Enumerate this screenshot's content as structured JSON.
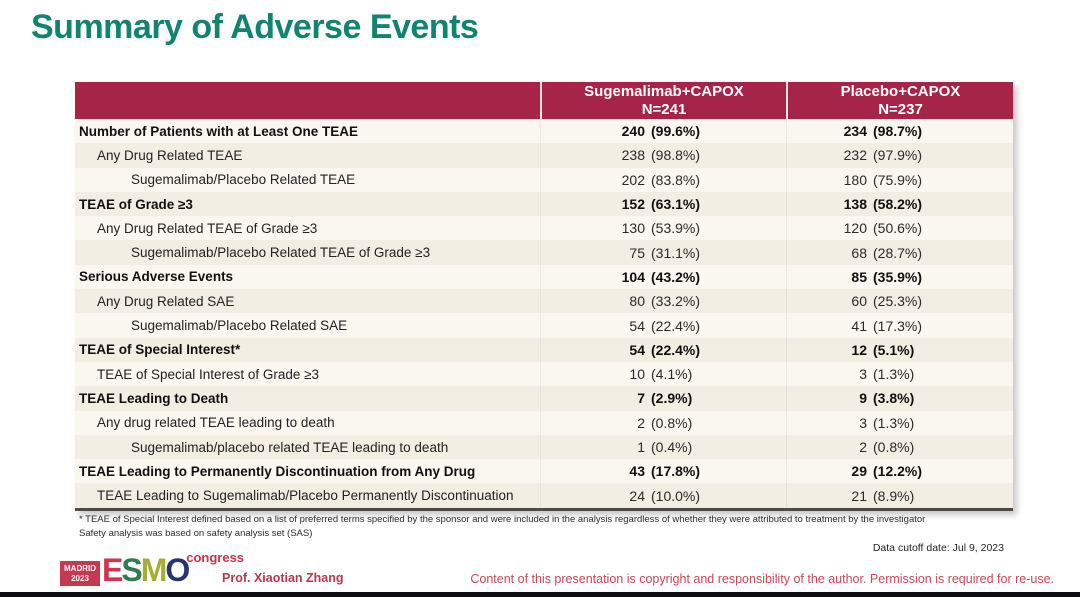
{
  "slide": {
    "title": "Summary of Adverse Events"
  },
  "colors": {
    "title_teal": "#11836f",
    "header_crimson": "#a62448",
    "table_body_cream": "#f8f4ec",
    "footer_red": "#c84a55"
  },
  "table": {
    "columns": [
      {
        "label": "Sugemalimab+CAPOX",
        "n": "N=241"
      },
      {
        "label": "Placebo+CAPOX",
        "n": "N=237"
      }
    ],
    "rows": [
      {
        "label": "Number of Patients with at Least One TEAE",
        "indent": 0,
        "bold": true,
        "sugemalimab_n": "240",
        "sugemalimab_pct": "(99.6%)",
        "placebo_n": "234",
        "placebo_pct": "(98.7%)"
      },
      {
        "label": "Any Drug Related TEAE",
        "indent": 1,
        "bold": false,
        "sugemalimab_n": "238",
        "sugemalimab_pct": "(98.8%)",
        "placebo_n": "232",
        "placebo_pct": "(97.9%)"
      },
      {
        "label": "Sugemalimab/Placebo Related TEAE",
        "indent": 2,
        "bold": false,
        "sugemalimab_n": "202",
        "sugemalimab_pct": "(83.8%)",
        "placebo_n": "180",
        "placebo_pct": "(75.9%)"
      },
      {
        "label": "TEAE of Grade ≥3",
        "indent": 0,
        "bold": true,
        "sugemalimab_n": "152",
        "sugemalimab_pct": "(63.1%)",
        "placebo_n": "138",
        "placebo_pct": "(58.2%)"
      },
      {
        "label": "Any Drug Related TEAE of Grade ≥3",
        "indent": 1,
        "bold": false,
        "sugemalimab_n": "130",
        "sugemalimab_pct": "(53.9%)",
        "placebo_n": "120",
        "placebo_pct": "(50.6%)"
      },
      {
        "label": "Sugemalimab/Placebo Related TEAE of Grade ≥3",
        "indent": 2,
        "bold": false,
        "sugemalimab_n": "75",
        "sugemalimab_pct": "(31.1%)",
        "placebo_n": "68",
        "placebo_pct": "(28.7%)"
      },
      {
        "label": "Serious Adverse Events",
        "indent": 0,
        "bold": true,
        "sugemalimab_n": "104",
        "sugemalimab_pct": "(43.2%)",
        "placebo_n": "85",
        "placebo_pct": "(35.9%)"
      },
      {
        "label": "Any Drug Related SAE",
        "indent": 1,
        "bold": false,
        "sugemalimab_n": "80",
        "sugemalimab_pct": "(33.2%)",
        "placebo_n": "60",
        "placebo_pct": "(25.3%)"
      },
      {
        "label": "Sugemalimab/Placebo Related SAE",
        "indent": 2,
        "bold": false,
        "sugemalimab_n": "54",
        "sugemalimab_pct": "(22.4%)",
        "placebo_n": "41",
        "placebo_pct": "(17.3%)"
      },
      {
        "label": "TEAE of Special Interest*",
        "indent": 0,
        "bold": true,
        "sugemalimab_n": "54",
        "sugemalimab_pct": "(22.4%)",
        "placebo_n": "12",
        "placebo_pct": "(5.1%)"
      },
      {
        "label": "TEAE of Special Interest of Grade ≥3",
        "indent": 1,
        "bold": false,
        "sugemalimab_n": "10",
        "sugemalimab_pct": "(4.1%)",
        "placebo_n": "3",
        "placebo_pct": "(1.3%)"
      },
      {
        "label": "TEAE Leading to Death",
        "indent": 0,
        "bold": true,
        "sugemalimab_n": "7",
        "sugemalimab_pct": "(2.9%)",
        "placebo_n": "9",
        "placebo_pct": "(3.8%)"
      },
      {
        "label": "Any drug related TEAE leading to death",
        "indent": 1,
        "bold": false,
        "sugemalimab_n": "2",
        "sugemalimab_pct": "(0.8%)",
        "placebo_n": "3",
        "placebo_pct": "(1.3%)"
      },
      {
        "label": "Sugemalimab/placebo related TEAE leading to death",
        "indent": 2,
        "bold": false,
        "sugemalimab_n": "1",
        "sugemalimab_pct": "(0.4%)",
        "placebo_n": "2",
        "placebo_pct": "(0.8%)"
      },
      {
        "label": "TEAE Leading to Permanently Discontinuation from Any Drug",
        "indent": 0,
        "bold": true,
        "sugemalimab_n": "43",
        "sugemalimab_pct": "(17.8%)",
        "placebo_n": "29",
        "placebo_pct": "(12.2%)"
      },
      {
        "label": "TEAE Leading to Sugemalimab/Placebo Permanently Discontinuation",
        "indent": 1,
        "bold": false,
        "sugemalimab_n": "24",
        "sugemalimab_pct": "(10.0%)",
        "placebo_n": "21",
        "placebo_pct": "(8.9%)"
      }
    ]
  },
  "footnotes": {
    "line1": "* TEAE of Special Interest defined based on a list of preferred terms specified by the sponsor and were included in the analysis regardless of whether they were attributed to treatment by the investigator",
    "line2": "Safety analysis was based on safety analysis set (SAS)"
  },
  "cutoff": "Data cutoff date: Jul 9, 2023",
  "footer": {
    "logo": {
      "madrid": "MADRID",
      "year": "2023",
      "e": "E",
      "s": "S",
      "m": "M",
      "o": "O",
      "congress": "congress"
    },
    "presenter": "Prof. Xiaotian Zhang",
    "copyright": "Content of this presentation is copyright and responsibility of the author. Permission is required for re-use."
  }
}
